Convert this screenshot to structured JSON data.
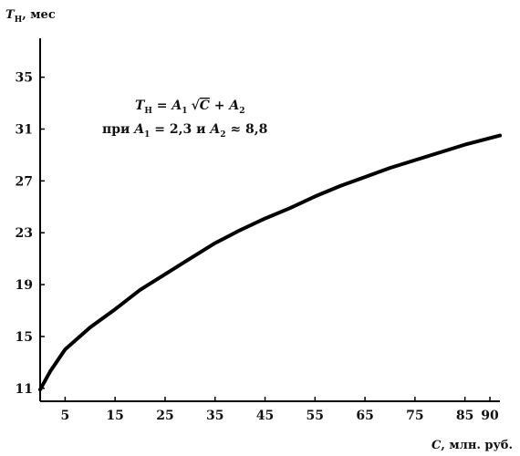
{
  "chart_data": {
    "type": "line",
    "title": "",
    "ylabel": {
      "symbol": "T",
      "subscript": "H",
      "unit": ", мес"
    },
    "xlabel": {
      "symbol": "C",
      "unit": ", млн. руб."
    },
    "xlim": [
      0,
      92
    ],
    "ylim": [
      10,
      38
    ],
    "x_ticks": [
      "5",
      "15",
      "25",
      "35",
      "45",
      "55",
      "65",
      "75",
      "85",
      "90"
    ],
    "x_tick_values": [
      5,
      15,
      25,
      35,
      45,
      55,
      65,
      75,
      85,
      90
    ],
    "y_ticks": [
      "11",
      "15",
      "19",
      "23",
      "27",
      "31",
      "35"
    ],
    "y_tick_values": [
      11,
      15,
      19,
      23,
      27,
      31,
      35
    ],
    "grid": false,
    "series": [
      {
        "x": [
          0,
          2,
          5,
          10,
          15,
          20,
          25,
          30,
          35,
          40,
          45,
          50,
          55,
          60,
          65,
          70,
          75,
          80,
          85,
          90,
          92
        ],
        "y": [
          10.9,
          12.3,
          14.0,
          15.7,
          17.1,
          18.6,
          19.8,
          21.0,
          22.2,
          23.2,
          24.1,
          24.9,
          25.8,
          26.6,
          27.3,
          28.0,
          28.6,
          29.2,
          29.8,
          30.3,
          30.5
        ]
      }
    ],
    "annotation": {
      "line1": {
        "T": "T",
        "T_sub": "H",
        "eq": " = ",
        "A1": "A",
        "A1_sub": "1",
        "sqrt": "√",
        "C": "C",
        "plus": " + ",
        "A2": "A",
        "A2_sub": "2"
      },
      "line2": {
        "pri": "при ",
        "A1": "A",
        "A1_sub": "1",
        "eq1": " = 2,3 ",
        "i": "и ",
        "A2": "A",
        "A2_sub": "2",
        "eq2": " ≈ 8,8"
      }
    },
    "colors": {
      "line": "#000000",
      "axis": "#000000",
      "text": "#111111"
    }
  }
}
